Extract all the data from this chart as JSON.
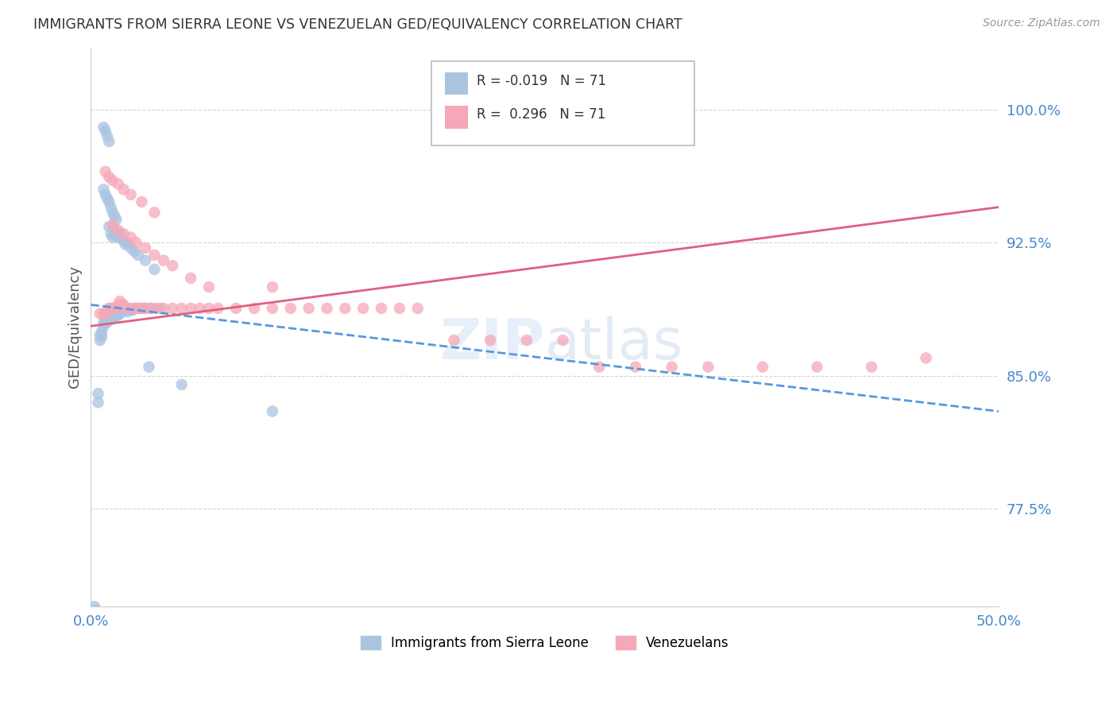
{
  "title": "IMMIGRANTS FROM SIERRA LEONE VS VENEZUELAN GED/EQUIVALENCY CORRELATION CHART",
  "source": "Source: ZipAtlas.com",
  "ylabel": "GED/Equivalency",
  "xlim": [
    0.0,
    0.5
  ],
  "ylim": [
    0.72,
    1.035
  ],
  "yticks": [
    0.775,
    0.85,
    0.925,
    1.0
  ],
  "yticklabels": [
    "77.5%",
    "85.0%",
    "92.5%",
    "100.0%"
  ],
  "legend_blue_r": "-0.019",
  "legend_blue_n": "71",
  "legend_pink_r": "0.296",
  "legend_pink_n": "71",
  "blue_scatter_color": "#aac4e0",
  "pink_scatter_color": "#f5a8b8",
  "trendline_blue_color": "#5599dd",
  "trendline_pink_color": "#e06080",
  "grid_color": "#d0d0d0",
  "title_color": "#333333",
  "axis_tick_color": "#4488cc",
  "background_color": "#ffffff",
  "sierra_leone_x": [
    0.002,
    0.003,
    0.004,
    0.004,
    0.005,
    0.005,
    0.006,
    0.006,
    0.007,
    0.007,
    0.008,
    0.008,
    0.009,
    0.009,
    0.01,
    0.01,
    0.01,
    0.011,
    0.011,
    0.012,
    0.012,
    0.013,
    0.013,
    0.014,
    0.014,
    0.015,
    0.016,
    0.016,
    0.017,
    0.018,
    0.019,
    0.02,
    0.021,
    0.022,
    0.023,
    0.025,
    0.027,
    0.03,
    0.033,
    0.038,
    0.01,
    0.011,
    0.012,
    0.013,
    0.014,
    0.015,
    0.016,
    0.017,
    0.018,
    0.019,
    0.02,
    0.022,
    0.024,
    0.026,
    0.03,
    0.035,
    0.007,
    0.008,
    0.009,
    0.01,
    0.011,
    0.012,
    0.013,
    0.014,
    0.007,
    0.008,
    0.009,
    0.01,
    0.032,
    0.05,
    0.1
  ],
  "sierra_leone_y": [
    0.72,
    0.718,
    0.835,
    0.84,
    0.87,
    0.873,
    0.872,
    0.875,
    0.878,
    0.88,
    0.882,
    0.884,
    0.88,
    0.883,
    0.882,
    0.883,
    0.884,
    0.882,
    0.884,
    0.882,
    0.884,
    0.883,
    0.884,
    0.884,
    0.885,
    0.884,
    0.885,
    0.886,
    0.886,
    0.887,
    0.887,
    0.886,
    0.887,
    0.887,
    0.887,
    0.888,
    0.888,
    0.888,
    0.888,
    0.888,
    0.934,
    0.93,
    0.928,
    0.932,
    0.93,
    0.928,
    0.93,
    0.928,
    0.926,
    0.924,
    0.925,
    0.922,
    0.92,
    0.918,
    0.915,
    0.91,
    0.955,
    0.952,
    0.95,
    0.948,
    0.945,
    0.942,
    0.94,
    0.938,
    0.99,
    0.988,
    0.985,
    0.982,
    0.855,
    0.845,
    0.83
  ],
  "venezuelan_x": [
    0.005,
    0.007,
    0.008,
    0.01,
    0.011,
    0.012,
    0.013,
    0.014,
    0.015,
    0.016,
    0.017,
    0.018,
    0.019,
    0.02,
    0.022,
    0.024,
    0.026,
    0.028,
    0.03,
    0.033,
    0.036,
    0.04,
    0.045,
    0.05,
    0.055,
    0.06,
    0.065,
    0.07,
    0.08,
    0.09,
    0.1,
    0.11,
    0.12,
    0.13,
    0.14,
    0.15,
    0.16,
    0.17,
    0.18,
    0.2,
    0.22,
    0.24,
    0.26,
    0.28,
    0.3,
    0.32,
    0.34,
    0.37,
    0.4,
    0.43,
    0.46,
    0.008,
    0.01,
    0.012,
    0.015,
    0.018,
    0.022,
    0.028,
    0.035,
    0.012,
    0.015,
    0.018,
    0.022,
    0.025,
    0.03,
    0.035,
    0.04,
    0.045,
    0.055,
    0.065,
    0.1
  ],
  "venezuelan_y": [
    0.885,
    0.885,
    0.885,
    0.888,
    0.888,
    0.888,
    0.888,
    0.888,
    0.89,
    0.892,
    0.89,
    0.89,
    0.888,
    0.888,
    0.888,
    0.888,
    0.888,
    0.888,
    0.888,
    0.888,
    0.888,
    0.888,
    0.888,
    0.888,
    0.888,
    0.888,
    0.888,
    0.888,
    0.888,
    0.888,
    0.888,
    0.888,
    0.888,
    0.888,
    0.888,
    0.888,
    0.888,
    0.888,
    0.888,
    0.87,
    0.87,
    0.87,
    0.87,
    0.855,
    0.855,
    0.855,
    0.855,
    0.855,
    0.855,
    0.855,
    0.86,
    0.965,
    0.962,
    0.96,
    0.958,
    0.955,
    0.952,
    0.948,
    0.942,
    0.935,
    0.932,
    0.93,
    0.928,
    0.925,
    0.922,
    0.918,
    0.915,
    0.912,
    0.905,
    0.9,
    0.9
  ]
}
